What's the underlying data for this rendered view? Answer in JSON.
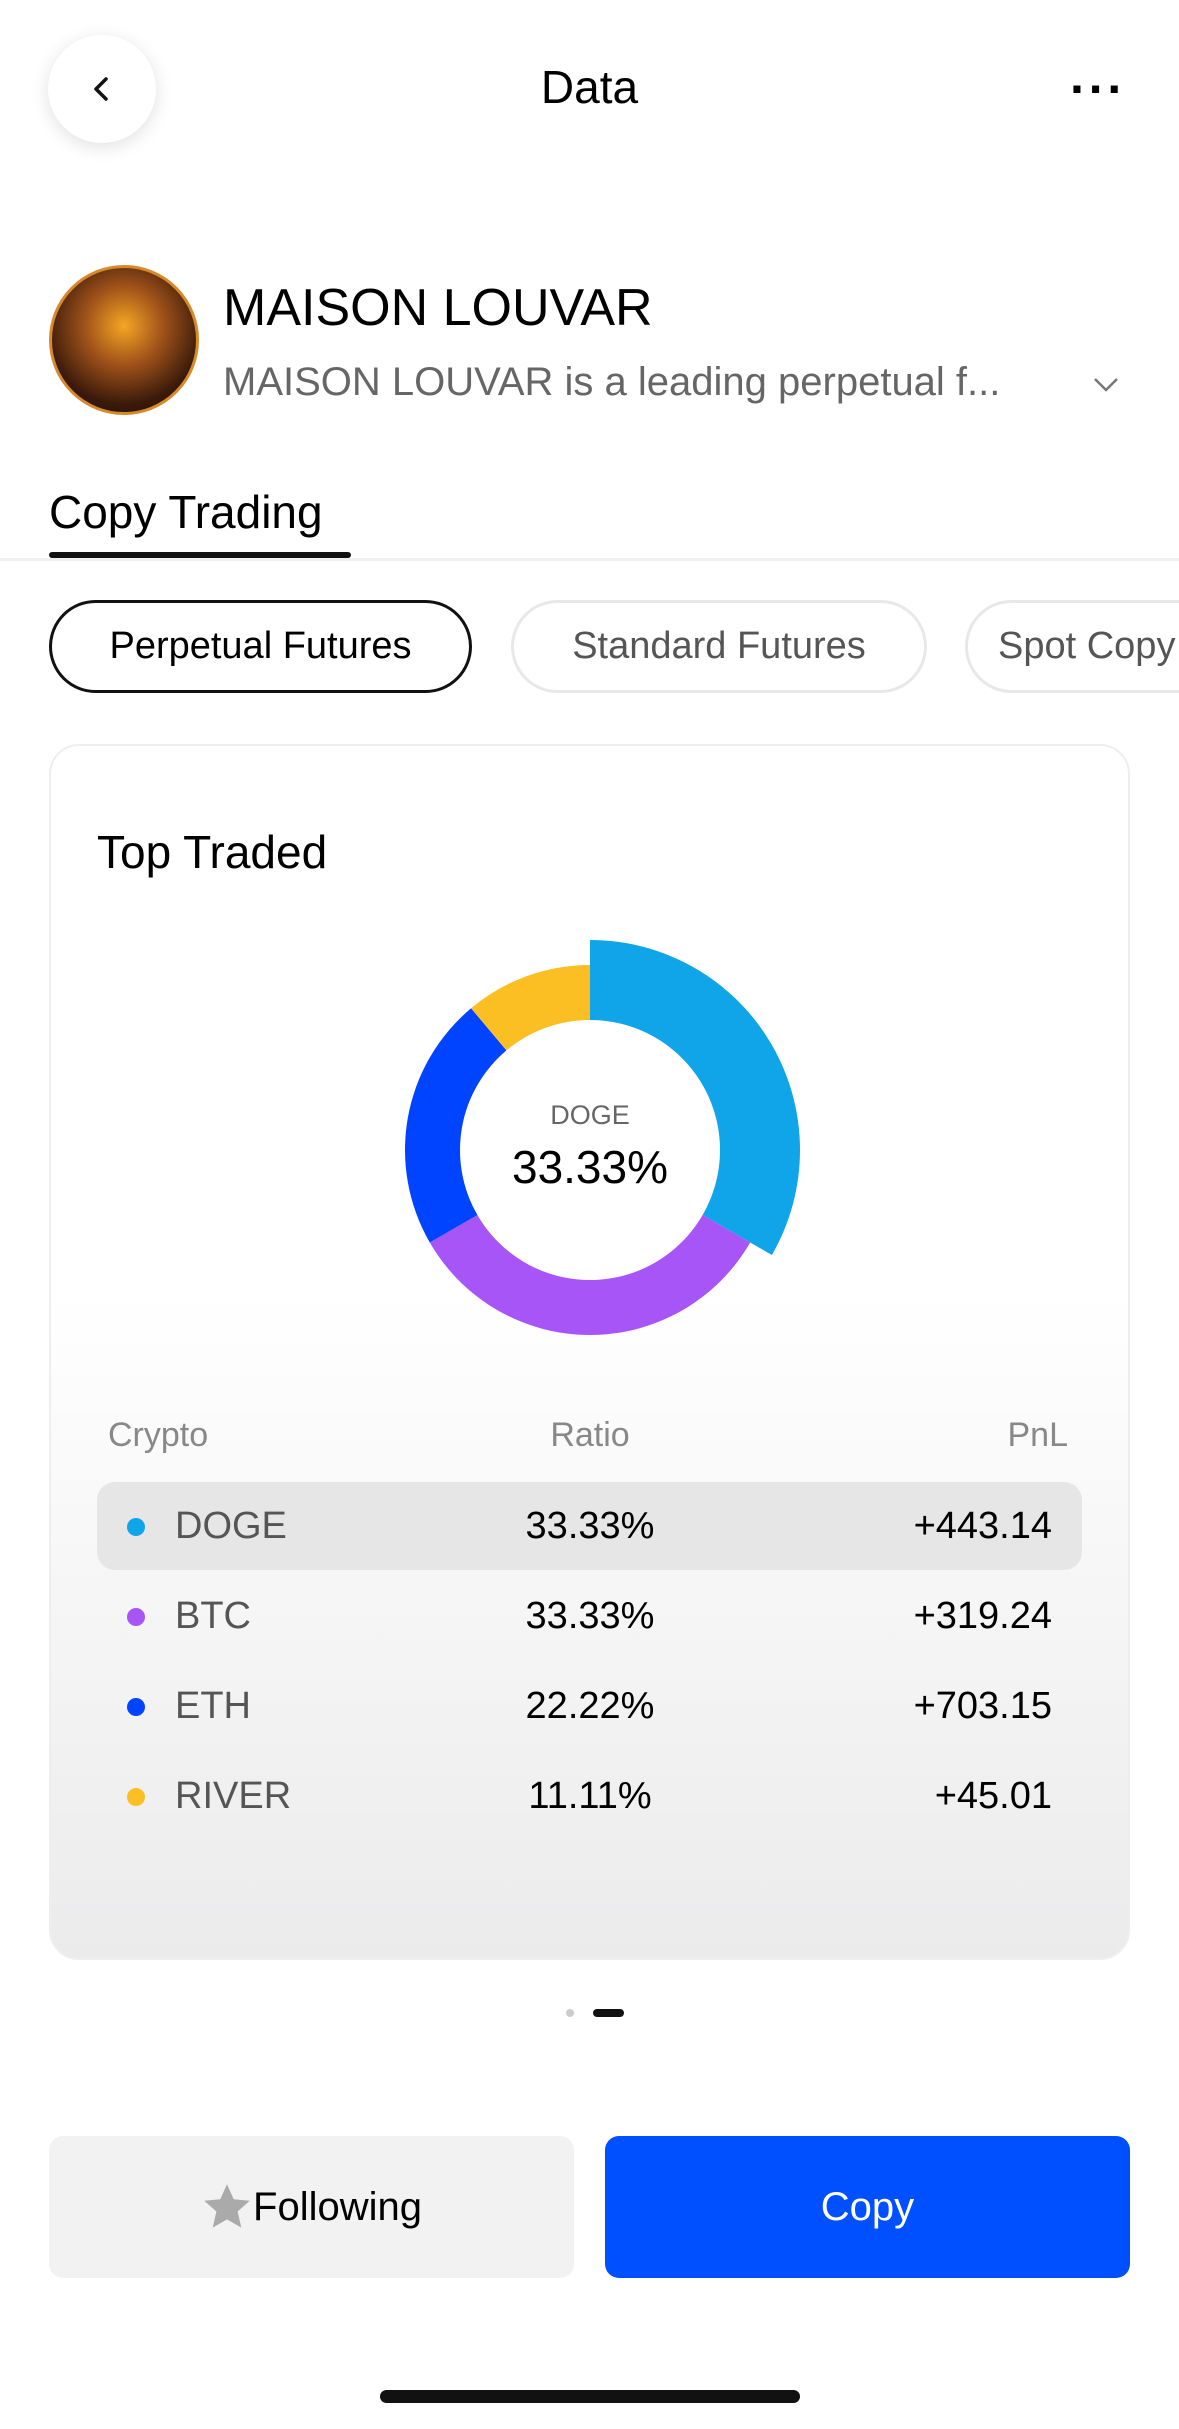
{
  "header": {
    "title": "Data",
    "back_icon": "chevron-left-icon",
    "more_icon": "more-horizontal-icon",
    "more_label": "···"
  },
  "profile": {
    "name": "MAISON LOUVAR",
    "description": "MAISON LOUVAR is a leading perpetual f...",
    "avatar_text": "MAISON LOUVAR"
  },
  "tabs": [
    {
      "label": "Copy Trading",
      "active": true
    }
  ],
  "filters": [
    {
      "label": "Perpetual Futures",
      "active": true
    },
    {
      "label": "Standard Futures"
    },
    {
      "label": "Spot Copy"
    }
  ],
  "card": {
    "title": "Top Traded",
    "center_label": "DOGE",
    "center_value": "33.33%",
    "columns": [
      "Crypto",
      "Ratio",
      "PnL"
    ],
    "rows": [
      {
        "crypto": "DOGE",
        "ratio": "33.33%",
        "pnl": "+443.14",
        "color": "#10a5e8",
        "selected": true
      },
      {
        "crypto": "BTC",
        "ratio": "33.33%",
        "pnl": "+319.24",
        "color": "#a855f7"
      },
      {
        "crypto": "ETH",
        "ratio": "22.22%",
        "pnl": "+703.15",
        "color": "#0044ff"
      },
      {
        "crypto": "RIVER",
        "ratio": "11.11%",
        "pnl": "+45.01",
        "color": "#fbbf24"
      }
    ]
  },
  "chart_data": {
    "type": "pie",
    "categories": [
      "DOGE",
      "BTC",
      "ETH",
      "RIVER"
    ],
    "values": [
      33.33,
      33.33,
      22.22,
      11.11
    ],
    "colors": [
      "#10a5e8",
      "#a855f7",
      "#0044ff",
      "#fbbf24"
    ],
    "highlighted": "DOGE",
    "donut": true
  },
  "pager": {
    "pages": 2,
    "current": 2
  },
  "actions": {
    "following_label": "Following",
    "copy_label": "Copy",
    "star_icon": "star-icon",
    "copy_color": "#0050ff"
  }
}
